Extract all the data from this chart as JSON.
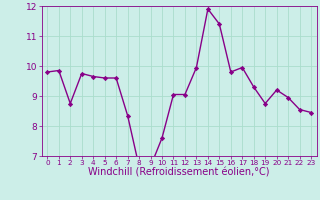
{
  "x": [
    0,
    1,
    2,
    3,
    4,
    5,
    6,
    7,
    8,
    9,
    10,
    11,
    12,
    13,
    14,
    15,
    16,
    17,
    18,
    19,
    20,
    21,
    22,
    23
  ],
  "y": [
    9.8,
    9.85,
    8.75,
    9.75,
    9.65,
    9.6,
    9.6,
    8.35,
    6.65,
    6.65,
    7.6,
    9.05,
    9.05,
    9.95,
    11.9,
    11.4,
    9.8,
    9.95,
    9.3,
    8.75,
    9.2,
    8.95,
    8.55,
    8.45
  ],
  "line_color": "#880088",
  "marker": "D",
  "marker_size": 2.2,
  "line_width": 1.0,
  "xlabel": "Windchill (Refroidissement éolien,°C)",
  "xlim": [
    -0.5,
    23.5
  ],
  "ylim": [
    7,
    12
  ],
  "yticks": [
    7,
    8,
    9,
    10,
    11,
    12
  ],
  "xticks": [
    0,
    1,
    2,
    3,
    4,
    5,
    6,
    7,
    8,
    9,
    10,
    11,
    12,
    13,
    14,
    15,
    16,
    17,
    18,
    19,
    20,
    21,
    22,
    23
  ],
  "background_color": "#cceee8",
  "grid_color": "#aaddcc",
  "tick_color": "#880088",
  "label_color": "#880088",
  "xlabel_fontsize": 7.0,
  "tick_fontsize": 6.5
}
